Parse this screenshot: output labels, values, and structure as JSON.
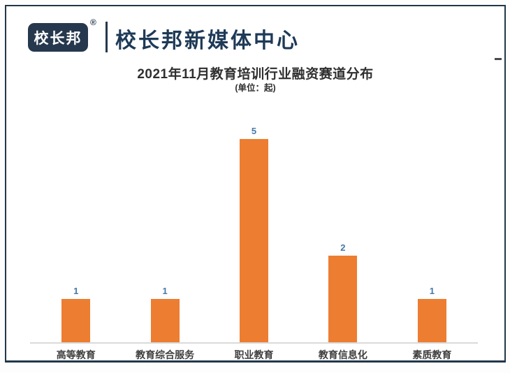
{
  "header": {
    "logo_text": "校长邦",
    "registered_mark": "®",
    "brand_title": "校长邦新媒体中心"
  },
  "chart_data": {
    "type": "bar",
    "title": "2021年11月教育培训行业融资赛道分布",
    "unit_label": "(单位：起)",
    "categories": [
      "高等教育",
      "教育综合服务",
      "职业教育",
      "教育信息化",
      "素质教育"
    ],
    "values": [
      1,
      1,
      5,
      2,
      1
    ],
    "xlabel": "",
    "ylabel": "",
    "ylim": [
      0,
      5
    ],
    "grid": false,
    "legend": false,
    "bar_color": "#ED7D31",
    "value_label_color": "#4678A8",
    "axis_line_color": "#DADADA",
    "category_label_color": "#3F3F3F"
  },
  "colors": {
    "brand_navy": "#26384D",
    "frame_border": "#22364A",
    "title_text": "#2F2F2F"
  }
}
